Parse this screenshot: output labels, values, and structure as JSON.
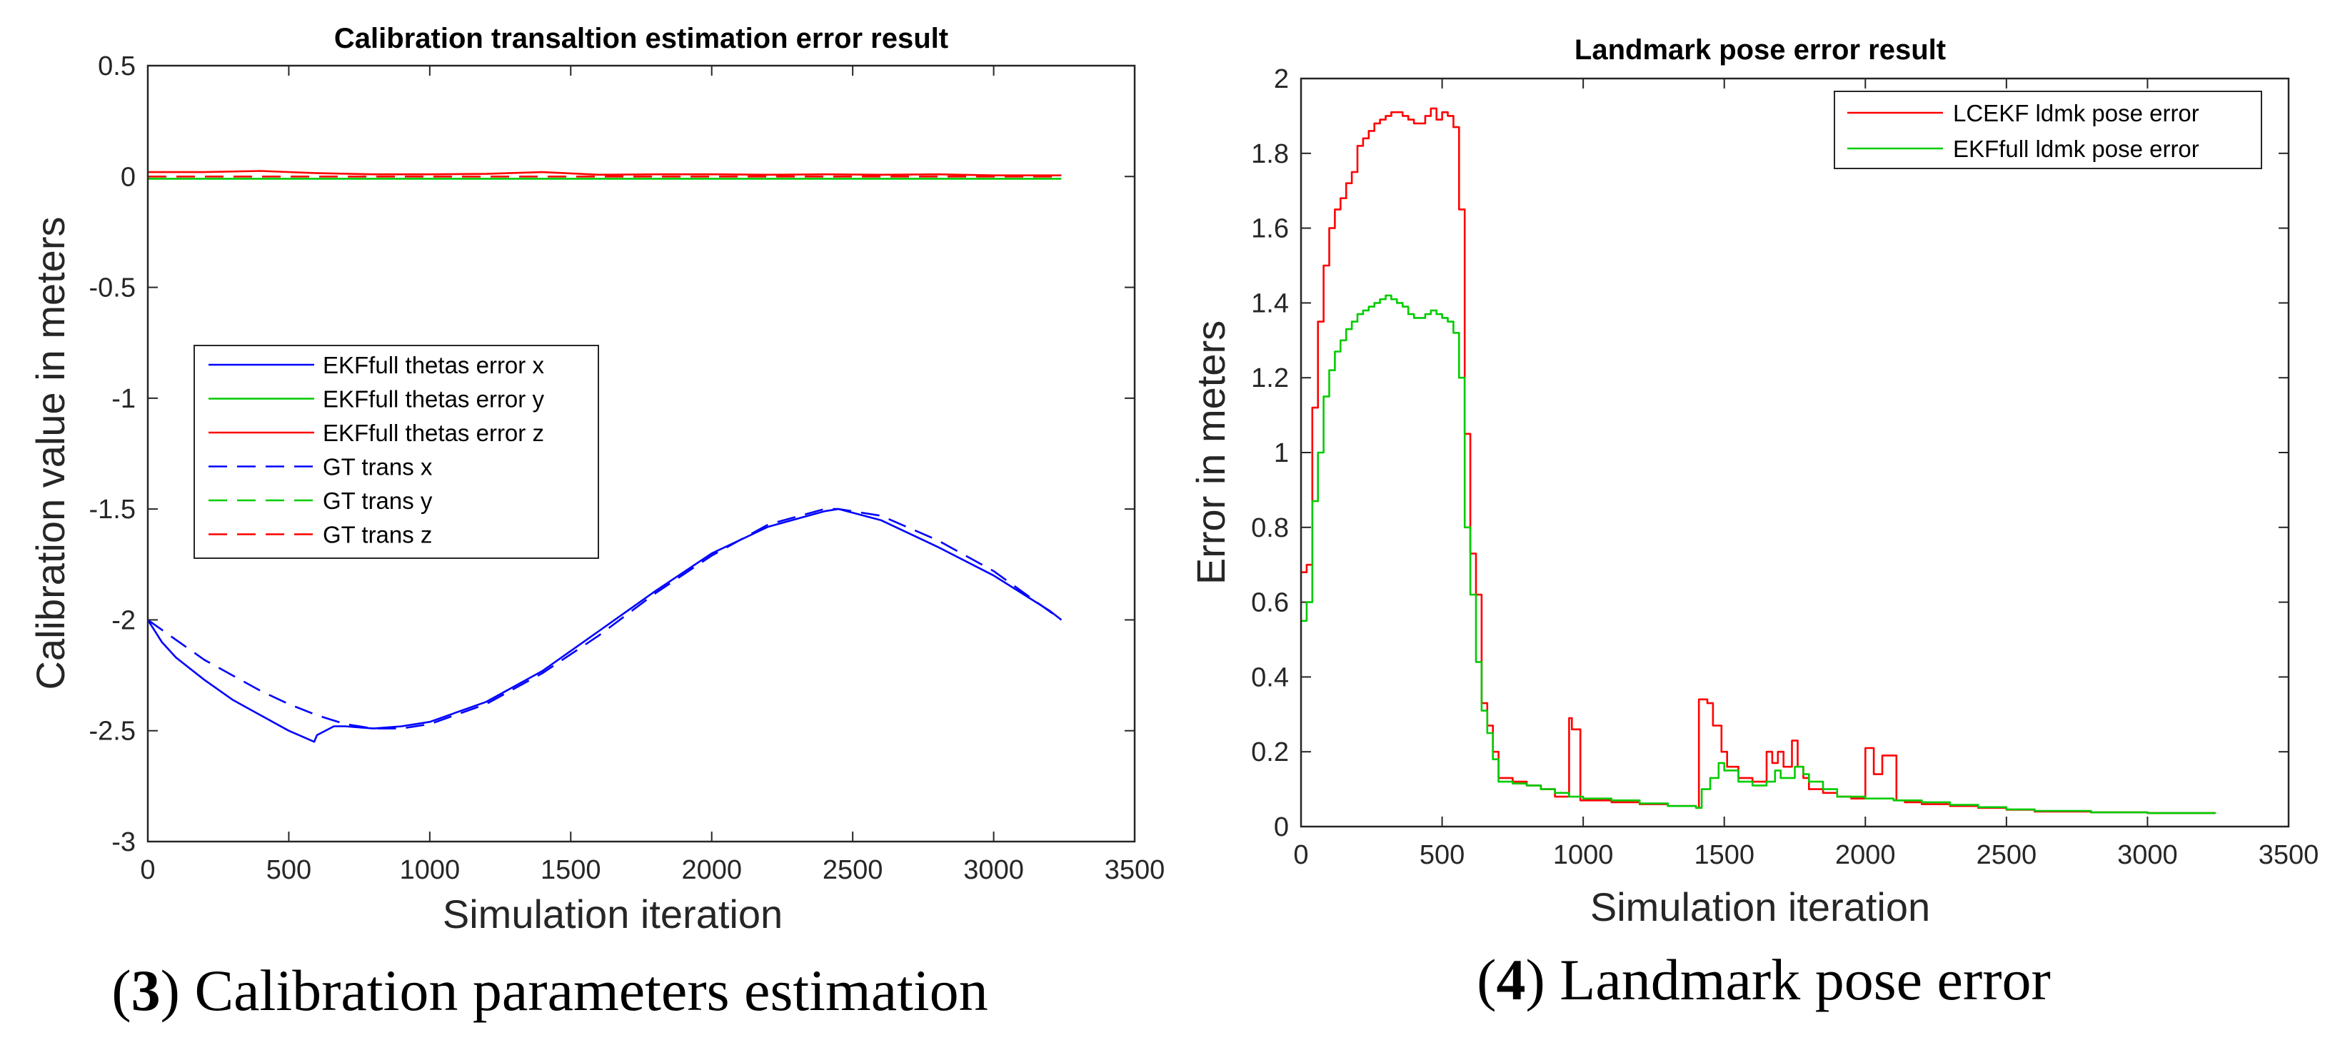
{
  "chart_data": [
    {
      "type": "line",
      "title": "Calibration transaltion estimation error result",
      "xlabel": "Simulation iteration",
      "ylabel": "Calibration value in meters",
      "xlim": [
        0,
        3500
      ],
      "ylim": [
        -3,
        0.5
      ],
      "xticks": [
        0,
        500,
        1000,
        1500,
        2000,
        2500,
        3000,
        3500
      ],
      "yticks": [
        -3,
        -2.5,
        -2,
        -1.5,
        -1,
        -0.5,
        0,
        0.5
      ],
      "xtick_labels": [
        "0",
        "500",
        "1000",
        "1500",
        "2000",
        "2500",
        "3000",
        "3500"
      ],
      "ytick_labels": [
        "-3",
        "-2.5",
        "-2",
        "-1.5",
        "-1",
        "-0.5",
        "0",
        "0.5"
      ],
      "legend_position": "middle-left",
      "caption": {
        "number": "3",
        "text": "Calibration parameters estimation"
      },
      "series": [
        {
          "name": "EKFfull thetas error x",
          "color": "#0000ff",
          "style": "solid",
          "x": [
            0,
            50,
            100,
            200,
            300,
            400,
            500,
            590,
            600,
            660,
            700,
            800,
            900,
            1000,
            1200,
            1400,
            1600,
            1800,
            2000,
            2200,
            2400,
            2450,
            2600,
            2800,
            3000,
            3200,
            3240
          ],
          "y": [
            -2.0,
            -2.1,
            -2.17,
            -2.27,
            -2.36,
            -2.43,
            -2.5,
            -2.55,
            -2.52,
            -2.48,
            -2.48,
            -2.49,
            -2.48,
            -2.46,
            -2.37,
            -2.23,
            -2.05,
            -1.87,
            -1.7,
            -1.58,
            -1.51,
            -1.5,
            -1.55,
            -1.67,
            -1.8,
            -1.96,
            -2.0
          ]
        },
        {
          "name": "EKFfull thetas error y",
          "color": "#00cc00",
          "style": "solid",
          "x": [
            0,
            500,
            1000,
            1500,
            2000,
            2500,
            3000,
            3240
          ],
          "y": [
            -0.01,
            -0.01,
            -0.01,
            -0.01,
            -0.01,
            -0.01,
            -0.01,
            -0.01
          ]
        },
        {
          "name": "EKFfull thetas error z",
          "color": "#ff0000",
          "style": "solid",
          "x": [
            0,
            200,
            400,
            600,
            800,
            1000,
            1200,
            1400,
            1600,
            1800,
            2000,
            2200,
            2400,
            2600,
            2800,
            3000,
            3240
          ],
          "y": [
            0.02,
            0.02,
            0.025,
            0.015,
            0.01,
            0.01,
            0.012,
            0.02,
            0.008,
            0.01,
            0.01,
            0.008,
            0.01,
            0.008,
            0.01,
            0.005,
            0.005
          ]
        },
        {
          "name": "GT trans x",
          "color": "#0000ff",
          "style": "dashed",
          "x": [
            0,
            100,
            200,
            300,
            400,
            500,
            600,
            700,
            800,
            900,
            1000,
            1200,
            1400,
            1600,
            1800,
            2000,
            2200,
            2400,
            2450,
            2600,
            2800,
            3000,
            3240
          ],
          "y": [
            -2.0,
            -2.09,
            -2.18,
            -2.25,
            -2.32,
            -2.38,
            -2.43,
            -2.47,
            -2.49,
            -2.49,
            -2.47,
            -2.38,
            -2.24,
            -2.07,
            -1.88,
            -1.71,
            -1.57,
            -1.5,
            -1.5,
            -1.53,
            -1.64,
            -1.78,
            -2.0
          ]
        },
        {
          "name": "GT trans y",
          "color": "#00cc00",
          "style": "dashed",
          "x": [
            0,
            3240
          ],
          "y": [
            0,
            0
          ]
        },
        {
          "name": "GT trans z",
          "color": "#ff0000",
          "style": "dashed",
          "x": [
            0,
            3240
          ],
          "y": [
            0,
            0
          ]
        }
      ]
    },
    {
      "type": "line",
      "title": "Landmark pose error result",
      "xlabel": "Simulation iteration",
      "ylabel": "Error in meters",
      "xlim": [
        0,
        3500
      ],
      "ylim": [
        0,
        2
      ],
      "xticks": [
        0,
        500,
        1000,
        1500,
        2000,
        2500,
        3000,
        3500
      ],
      "yticks": [
        0,
        0.2,
        0.4,
        0.6,
        0.8,
        1,
        1.2,
        1.4,
        1.6,
        1.8,
        2
      ],
      "xtick_labels": [
        "0",
        "500",
        "1000",
        "1500",
        "2000",
        "2500",
        "3000",
        "3500"
      ],
      "ytick_labels": [
        "0",
        "0.2",
        "0.4",
        "0.6",
        "0.8",
        "1",
        "1.2",
        "1.4",
        "1.6",
        "1.8",
        "2"
      ],
      "legend_position": "top-right",
      "caption": {
        "number": "4",
        "text": "Landmark pose error"
      },
      "series": [
        {
          "name": "LCEKF ldmk pose error",
          "color": "#ff0000",
          "style": "step",
          "x": [
            0,
            20,
            40,
            60,
            80,
            100,
            120,
            140,
            160,
            180,
            200,
            220,
            240,
            260,
            280,
            300,
            320,
            340,
            360,
            380,
            400,
            420,
            440,
            460,
            480,
            500,
            520,
            540,
            560,
            580,
            600,
            620,
            640,
            660,
            680,
            700,
            750,
            800,
            850,
            900,
            950,
            960,
            990,
            1000,
            1100,
            1200,
            1300,
            1400,
            1410,
            1440,
            1460,
            1490,
            1510,
            1550,
            1600,
            1650,
            1670,
            1690,
            1710,
            1740,
            1760,
            1780,
            1800,
            1850,
            1900,
            1950,
            2000,
            2030,
            2060,
            2080,
            2110,
            2140,
            2200,
            2300,
            2400,
            2500,
            2600,
            2800,
            3000,
            3240
          ],
          "y": [
            0.68,
            0.7,
            1.12,
            1.35,
            1.5,
            1.6,
            1.65,
            1.68,
            1.72,
            1.75,
            1.82,
            1.84,
            1.86,
            1.88,
            1.89,
            1.9,
            1.91,
            1.91,
            1.9,
            1.89,
            1.88,
            1.88,
            1.9,
            1.92,
            1.89,
            1.91,
            1.9,
            1.87,
            1.65,
            1.05,
            0.73,
            0.62,
            0.33,
            0.27,
            0.2,
            0.13,
            0.12,
            0.11,
            0.1,
            0.08,
            0.29,
            0.26,
            0.07,
            0.07,
            0.065,
            0.06,
            0.055,
            0.05,
            0.34,
            0.33,
            0.27,
            0.2,
            0.16,
            0.13,
            0.12,
            0.2,
            0.17,
            0.2,
            0.16,
            0.23,
            0.16,
            0.13,
            0.1,
            0.09,
            0.08,
            0.075,
            0.21,
            0.14,
            0.19,
            0.19,
            0.07,
            0.065,
            0.06,
            0.055,
            0.05,
            0.045,
            0.04,
            0.038,
            0.036,
            0.036
          ]
        },
        {
          "name": "EKFfull ldmk pose error",
          "color": "#00cc00",
          "style": "step",
          "x": [
            0,
            20,
            40,
            60,
            80,
            100,
            120,
            140,
            160,
            180,
            200,
            220,
            240,
            260,
            280,
            300,
            320,
            340,
            360,
            380,
            400,
            420,
            440,
            460,
            480,
            500,
            520,
            540,
            560,
            580,
            600,
            620,
            640,
            660,
            680,
            700,
            750,
            800,
            850,
            900,
            950,
            1000,
            1100,
            1200,
            1300,
            1400,
            1420,
            1450,
            1480,
            1500,
            1550,
            1600,
            1650,
            1680,
            1700,
            1750,
            1780,
            1800,
            1850,
            1900,
            2000,
            2100,
            2200,
            2300,
            2400,
            2500,
            2600,
            2800,
            3000,
            3240
          ],
          "y": [
            0.55,
            0.6,
            0.87,
            1.0,
            1.15,
            1.22,
            1.27,
            1.3,
            1.33,
            1.35,
            1.37,
            1.38,
            1.39,
            1.4,
            1.41,
            1.42,
            1.41,
            1.4,
            1.39,
            1.37,
            1.36,
            1.36,
            1.37,
            1.38,
            1.37,
            1.36,
            1.35,
            1.32,
            1.2,
            0.8,
            0.62,
            0.44,
            0.31,
            0.25,
            0.18,
            0.12,
            0.115,
            0.11,
            0.1,
            0.09,
            0.08,
            0.075,
            0.07,
            0.062,
            0.055,
            0.05,
            0.1,
            0.13,
            0.17,
            0.15,
            0.12,
            0.11,
            0.12,
            0.15,
            0.13,
            0.16,
            0.14,
            0.12,
            0.1,
            0.08,
            0.075,
            0.07,
            0.065,
            0.058,
            0.052,
            0.046,
            0.042,
            0.038,
            0.036,
            0.035
          ]
        }
      ]
    }
  ]
}
